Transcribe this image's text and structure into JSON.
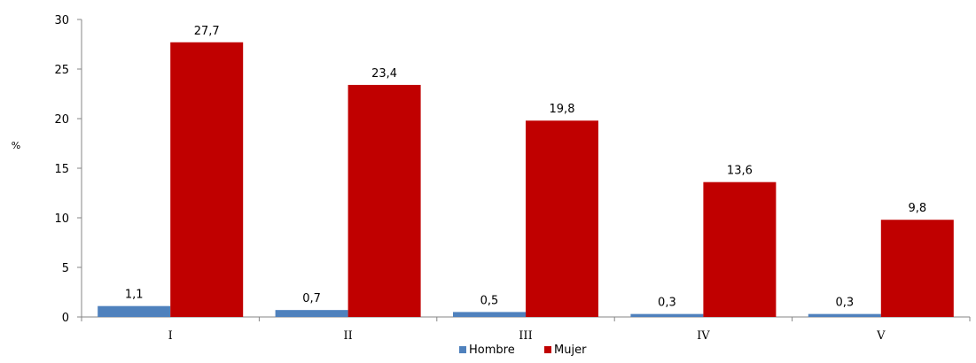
{
  "chart_data": {
    "type": "bar",
    "title": "",
    "xlabel": "",
    "ylabel": "%",
    "categories": [
      "I",
      "II",
      "III",
      "IV",
      "V"
    ],
    "ylim": [
      0,
      30
    ],
    "yticks": [
      0,
      5,
      10,
      15,
      20,
      25,
      30
    ],
    "grid": false,
    "legend_position": "bottom",
    "series": [
      {
        "name": "Hombre",
        "color": "#4f81bd",
        "values": [
          1.1,
          0.7,
          0.5,
          0.3,
          0.3
        ],
        "labels": [
          "1,1",
          "0,7",
          "0,5",
          "0,3",
          "0,3"
        ]
      },
      {
        "name": "Mujer",
        "color": "#c00000",
        "values": [
          27.7,
          23.4,
          19.8,
          13.6,
          9.8
        ],
        "labels": [
          "27,7",
          "23,4",
          "19,8",
          "13,6",
          "9,8"
        ]
      }
    ]
  }
}
